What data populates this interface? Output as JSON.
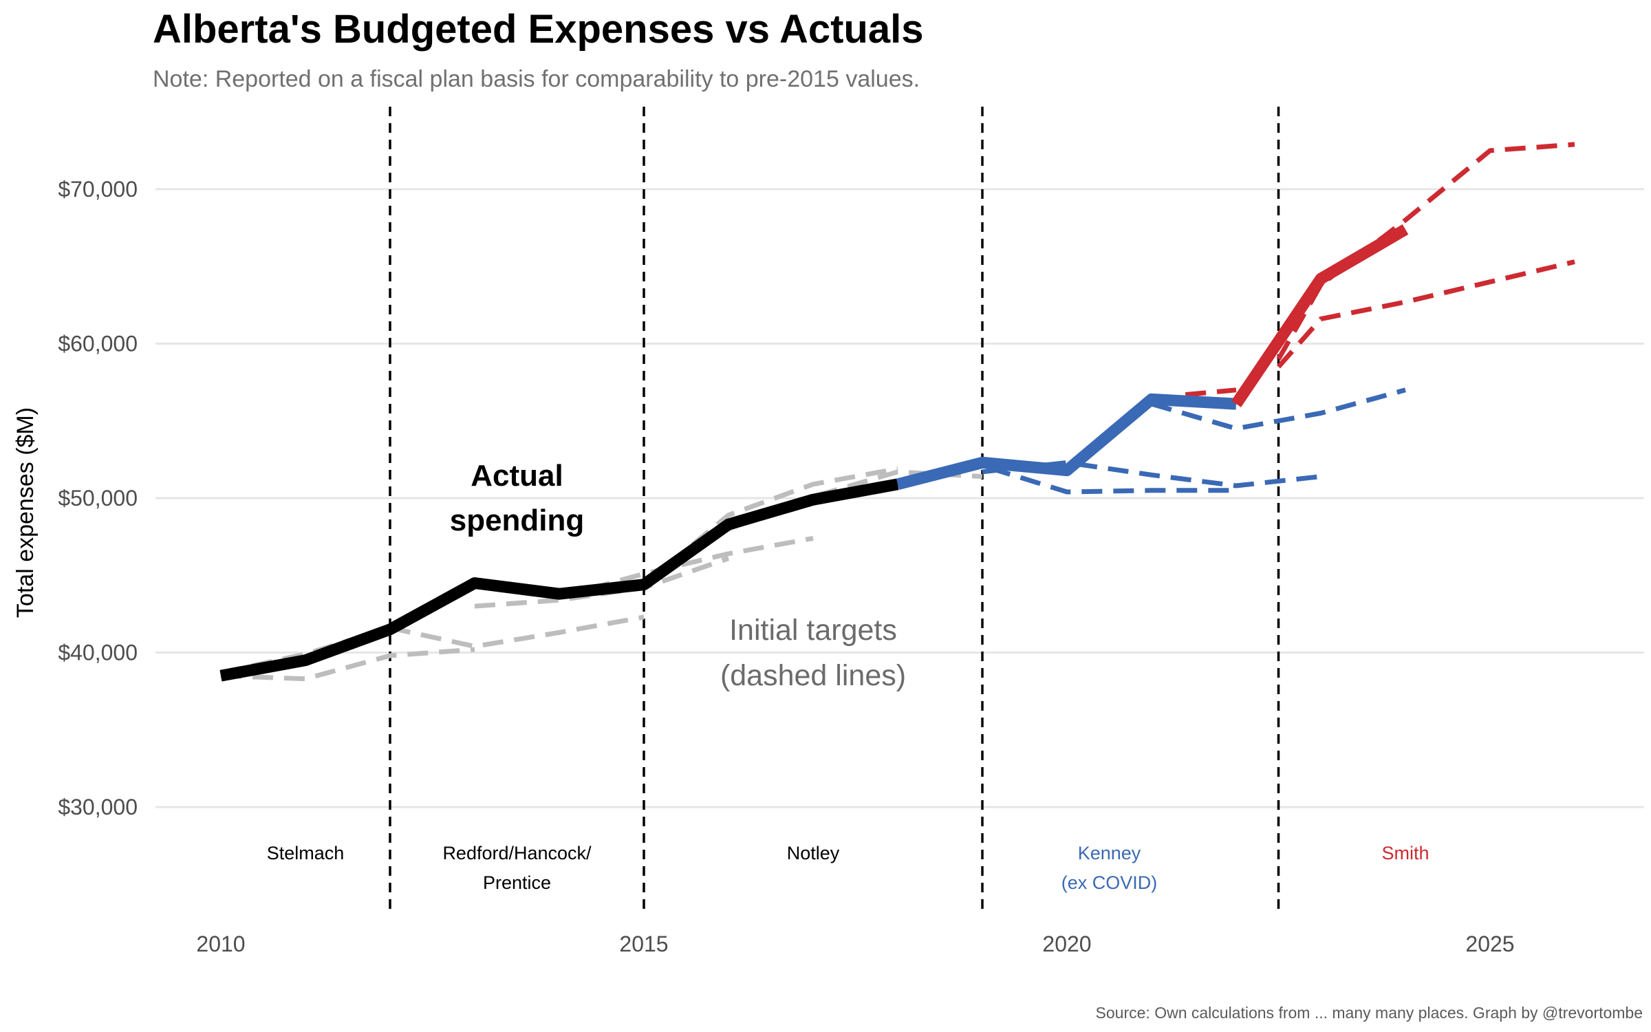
{
  "chart_data": {
    "type": "line",
    "title": "Alberta's Budgeted Expenses vs Actuals",
    "subtitle": "Note: Reported on a fiscal plan basis for comparability to pre-2015 values.",
    "ylabel": "Total expenses ($M)",
    "xlabel": "",
    "caption": "Source: Own calculations from ... many many places. Graph by @trevortombe",
    "xlim": [
      2009.5,
      2027.3
    ],
    "ylim": [
      22000,
      75500
    ],
    "x_ticks": [
      2010,
      2015,
      2020,
      2025
    ],
    "x_tick_labels": [
      "2010",
      "2015",
      "2020",
      "2025"
    ],
    "y_ticks": [
      30000,
      40000,
      50000,
      60000,
      70000
    ],
    "y_tick_labels": [
      "$30,000",
      "$40,000",
      "$50,000",
      "$60,000",
      "$70,000"
    ],
    "colors": {
      "stelmach": "#000000",
      "kenney": "#3a69b5",
      "smith": "#cd2a31",
      "targets_old": "#bdbdbd",
      "divider": "#000000",
      "grid": "#e6e6e6"
    },
    "actuals": [
      {
        "name": "Actual spending (pre-Kenney)",
        "color": "#000000",
        "x": [
          2010,
          2011,
          2012,
          2013,
          2014,
          2015,
          2016,
          2017,
          2018
        ],
        "y": [
          38500,
          39500,
          41500,
          44500,
          43800,
          44400,
          48300,
          49900,
          50900
        ]
      },
      {
        "name": "Actual spending (Kenney)",
        "color": "#3a69b5",
        "x": [
          2018,
          2019,
          2020,
          2021,
          2022
        ],
        "y": [
          50900,
          52300,
          51800,
          56400,
          56100
        ]
      },
      {
        "name": "Actual spending (Smith)",
        "color": "#cd2a31",
        "x": [
          2022,
          2023,
          2024
        ],
        "y": [
          56100,
          64200,
          67400
        ]
      }
    ],
    "targets": [
      {
        "color": "#bdbdbd",
        "x": [
          2010,
          2011,
          2012,
          2013
        ],
        "y": [
          38500,
          38300,
          39800,
          40200
        ]
      },
      {
        "color": "#bdbdbd",
        "x": [
          2010,
          2011,
          2012
        ],
        "y": [
          38700,
          39900,
          41600
        ]
      },
      {
        "color": "#bdbdbd",
        "x": [
          2012,
          2013,
          2014,
          2015
        ],
        "y": [
          41600,
          40400,
          41300,
          42300
        ]
      },
      {
        "color": "#bdbdbd",
        "x": [
          2013,
          2014,
          2015,
          2016
        ],
        "y": [
          43000,
          43400,
          44200,
          46100
        ]
      },
      {
        "color": "#bdbdbd",
        "x": [
          2014,
          2015,
          2016,
          2017
        ],
        "y": [
          43600,
          45100,
          46400,
          47400
        ]
      },
      {
        "color": "#bdbdbd",
        "x": [
          2015,
          2016,
          2017,
          2018
        ],
        "y": [
          44400,
          48900,
          50900,
          51900
        ]
      },
      {
        "color": "#bdbdbd",
        "x": [
          2016,
          2017,
          2018,
          2019
        ],
        "y": [
          48000,
          50100,
          51700,
          51400
        ]
      },
      {
        "color": "#3a69b5",
        "x": [
          2018,
          2019,
          2020,
          2021,
          2022
        ],
        "y": [
          50900,
          52100,
          50400,
          50500,
          50500
        ]
      },
      {
        "color": "#3a69b5",
        "x": [
          2019,
          2020,
          2021,
          2022,
          2023
        ],
        "y": [
          51700,
          52300,
          51500,
          50800,
          51400
        ]
      },
      {
        "color": "#3a69b5",
        "x": [
          2021,
          2022,
          2023,
          2024
        ],
        "y": [
          56100,
          54500,
          55500,
          57000
        ]
      },
      {
        "color": "#cd2a31",
        "x": [
          2021.4,
          2022
        ],
        "y": [
          56700,
          57000
        ]
      },
      {
        "color": "#cd2a31",
        "x": [
          2022.5,
          2023,
          2024,
          2025,
          2026
        ],
        "y": [
          58500,
          61600,
          62700,
          64000,
          65300
        ]
      },
      {
        "color": "#cd2a31",
        "x": [
          2022.5,
          2023,
          2024,
          2025,
          2026
        ],
        "y": [
          59000,
          63800,
          68000,
          72500,
          72900
        ]
      }
    ],
    "dividers_x": [
      2012,
      2015,
      2019,
      2022.5
    ],
    "eras": [
      {
        "lines": [
          "Stelmach"
        ],
        "x": 2011,
        "color": "#000000"
      },
      {
        "lines": [
          "Redford/Hancock/",
          "Prentice"
        ],
        "x": 2013.5,
        "color": "#000000"
      },
      {
        "lines": [
          "Notley"
        ],
        "x": 2017,
        "color": "#000000"
      },
      {
        "lines": [
          "Kenney",
          "(ex COVID)"
        ],
        "x": 2020.5,
        "color": "#3a69b5"
      },
      {
        "lines": [
          "Smith"
        ],
        "x": 2024,
        "color": "#cd2a31"
      }
    ],
    "annotations": [
      {
        "lines": [
          "Actual",
          "spending"
        ],
        "x": 2013.5,
        "y": 49000
      },
      {
        "lines": [
          "Initial targets",
          "(dashed lines)"
        ],
        "x": 2017,
        "y": 39800
      }
    ]
  }
}
